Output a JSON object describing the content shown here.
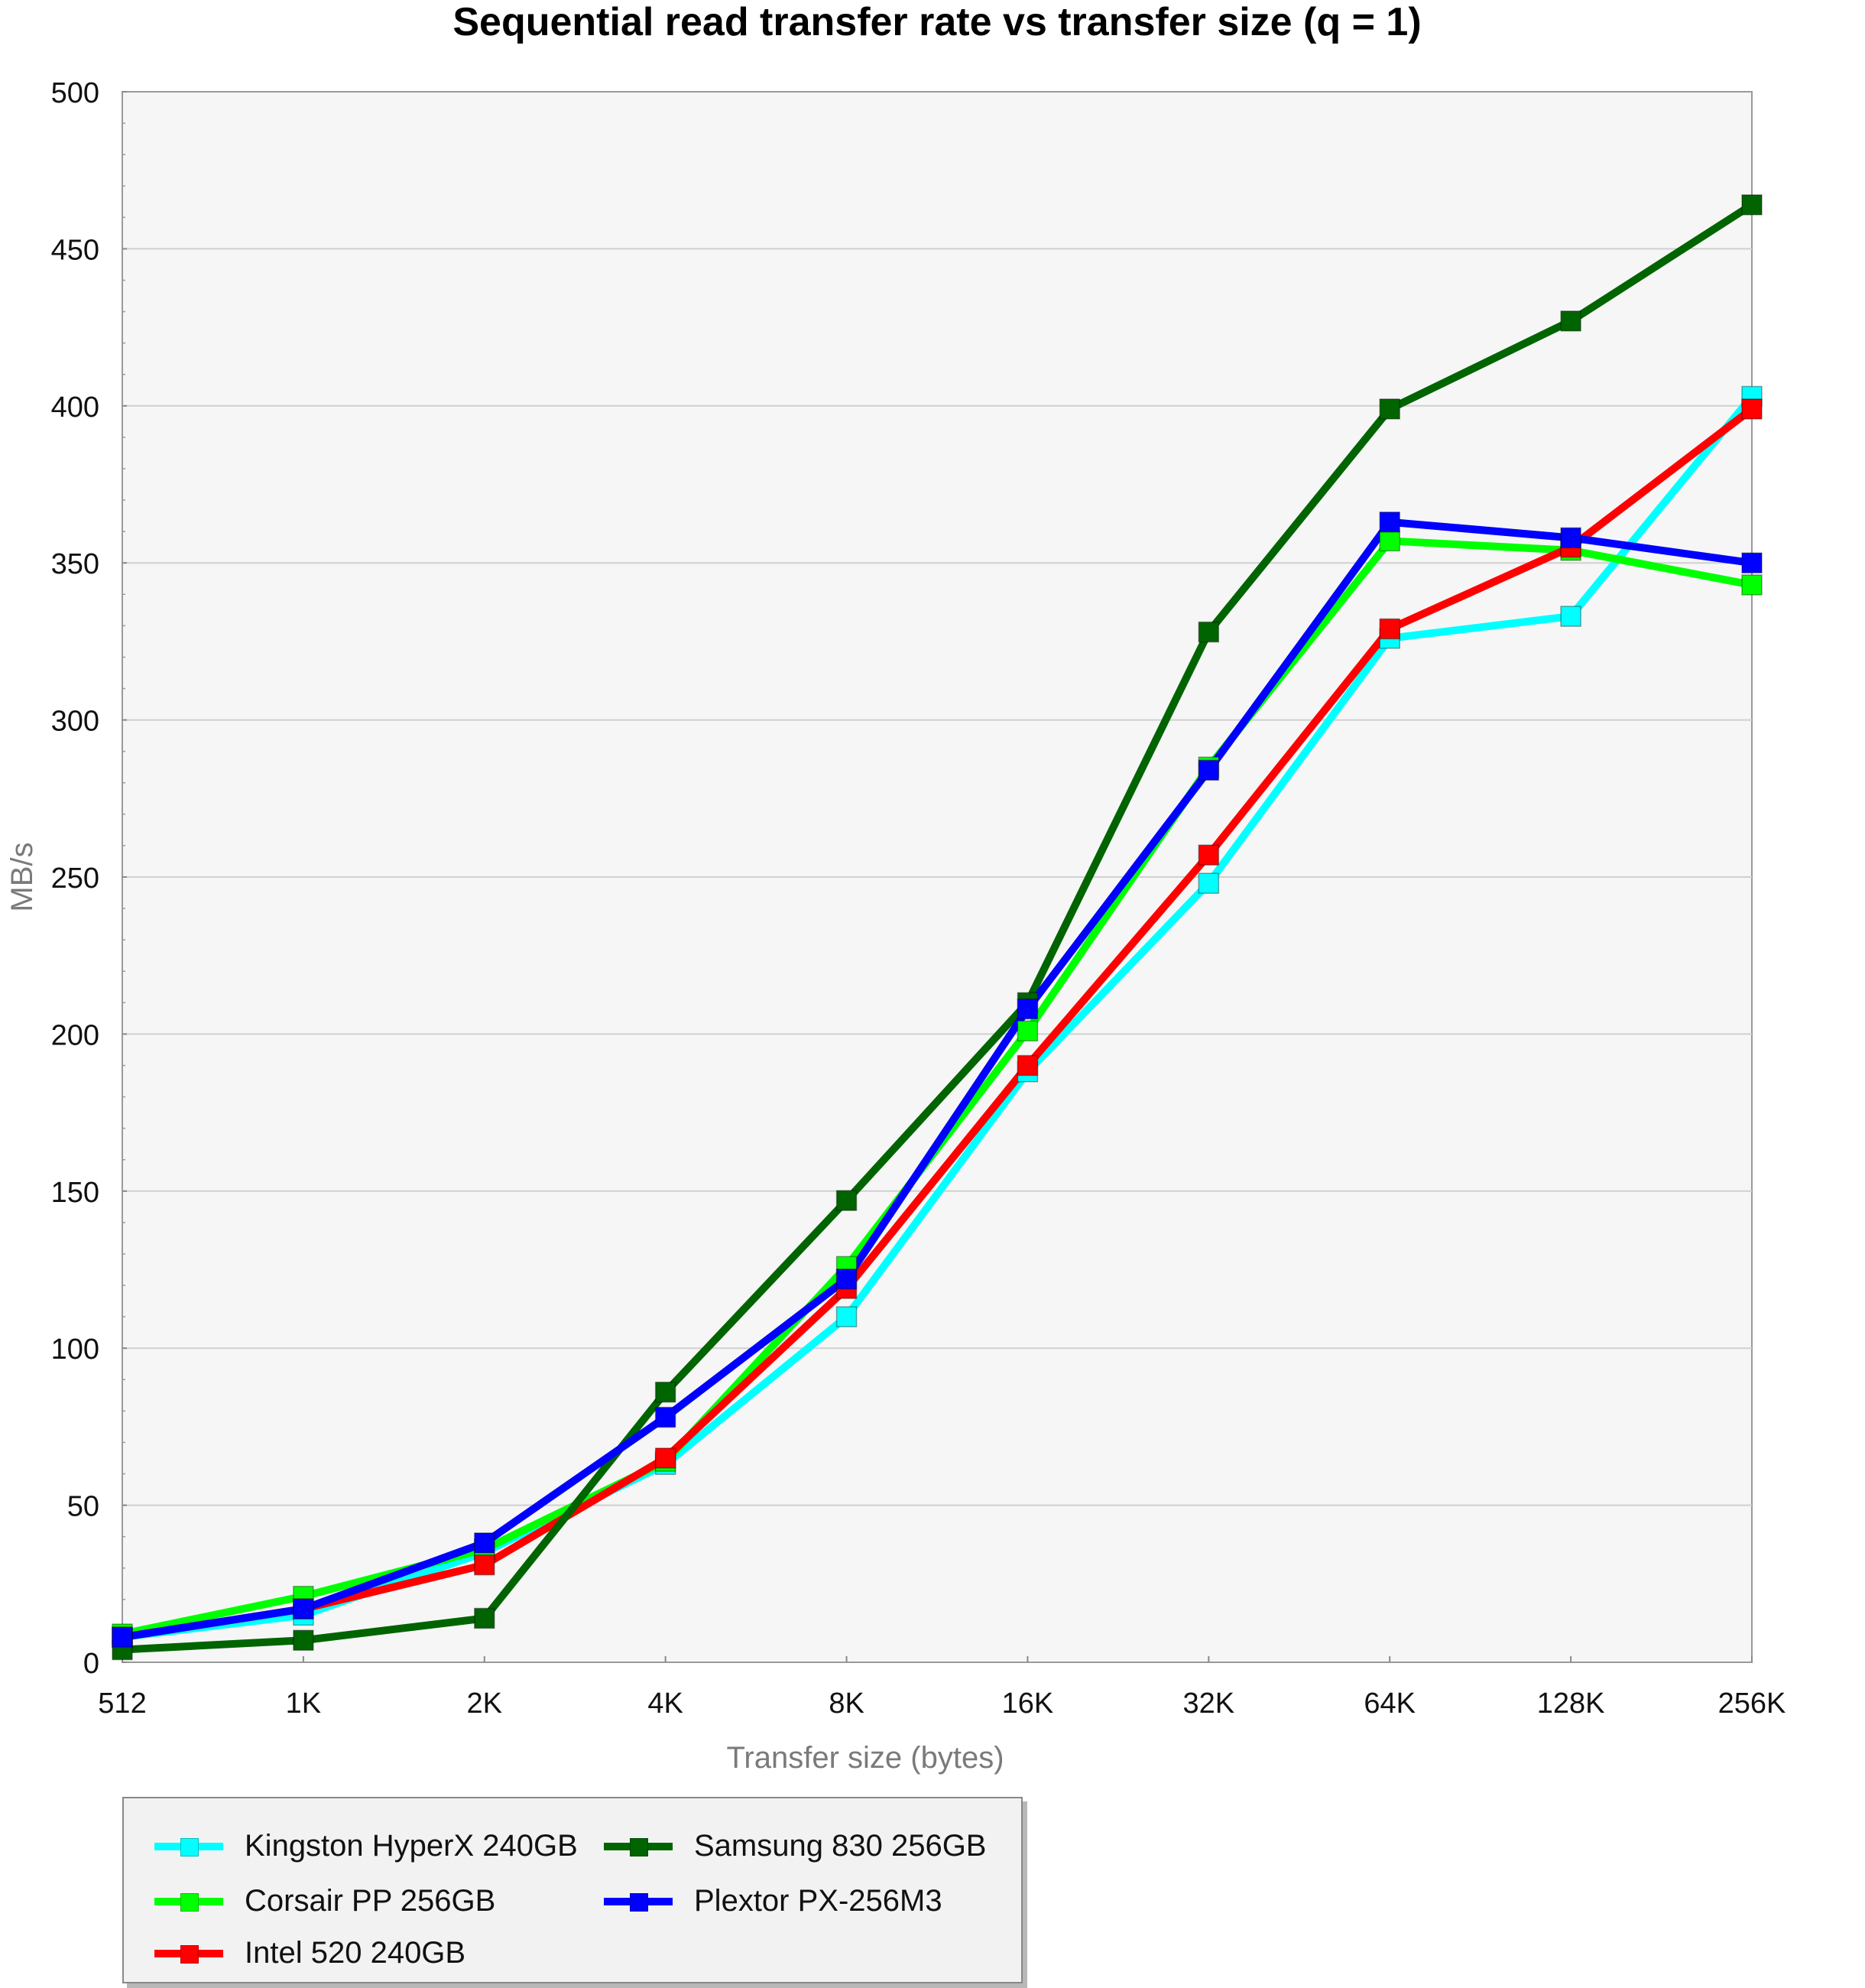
{
  "chart_data": {
    "type": "line",
    "title": "Sequential read transfer rate vs transfer size (q = 1)",
    "xlabel": "Transfer size (bytes)",
    "ylabel": "MB/s",
    "categories": [
      "512",
      "1K",
      "2K",
      "4K",
      "8K",
      "16K",
      "32K",
      "64K",
      "128K",
      "256K"
    ],
    "ylim": [
      0,
      500
    ],
    "yticks": [
      0,
      50,
      100,
      150,
      200,
      250,
      300,
      350,
      400,
      450,
      500
    ],
    "grid": true,
    "legend_position": "bottom-left",
    "series": [
      {
        "name": "Kingston HyperX 240GB",
        "color": "#00ffff",
        "values": [
          8,
          15,
          35,
          63,
          110,
          188,
          248,
          326,
          333,
          403
        ]
      },
      {
        "name": "Corsair PP 256GB",
        "color": "#00ff00",
        "values": [
          9,
          21,
          36,
          64,
          126,
          201,
          285,
          357,
          354,
          343
        ]
      },
      {
        "name": "Intel 520 240GB",
        "color": "#ff0000",
        "values": [
          8,
          17,
          31,
          65,
          119,
          190,
          257,
          329,
          355,
          399
        ]
      },
      {
        "name": "Samsung 830 256GB",
        "color": "#006400",
        "values": [
          4,
          7,
          14,
          86,
          147,
          210,
          328,
          399,
          427,
          464
        ]
      },
      {
        "name": "Plextor PX-256M3",
        "color": "#0000ff",
        "values": [
          8,
          17,
          38,
          78,
          122,
          208,
          284,
          363,
          358,
          350
        ]
      }
    ]
  },
  "legend_order": [
    0,
    3,
    1,
    4,
    2
  ]
}
